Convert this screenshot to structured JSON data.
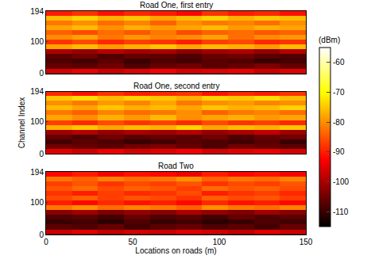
{
  "chart_data": [
    {
      "type": "heatmap",
      "title": "Road One, first entry",
      "tick_labels": "y",
      "x": [
        7.5,
        22.5,
        37.5,
        52.5,
        67.5,
        82.5,
        97.5,
        112.5,
        127.5,
        142.5
      ],
      "y": [
        7.5,
        22.5,
        37.5,
        52.5,
        67.5,
        82.5,
        97.5,
        112.5,
        127.5,
        142.5,
        157.5,
        172.5,
        187.5
      ],
      "z": [
        [
          -96,
          -94,
          -97,
          -95,
          -93,
          -96,
          -95,
          -94,
          -97,
          -95
        ],
        [
          -106,
          -107,
          -105,
          -108,
          -106,
          -105,
          -107,
          -106,
          -104,
          -106
        ],
        [
          -108,
          -109,
          -107,
          -110,
          -108,
          -109,
          -107,
          -108,
          -110,
          -109
        ],
        [
          -107,
          -105,
          -108,
          -106,
          -107,
          -108,
          -106,
          -105,
          -107,
          -108
        ],
        [
          -100,
          -102,
          -99,
          -101,
          -100,
          -103,
          -101,
          -100,
          -102,
          -99
        ],
        [
          -78,
          -76,
          -79,
          -77,
          -75,
          -78,
          -76,
          -77,
          -79,
          -76
        ],
        [
          -88,
          -86,
          -89,
          -87,
          -88,
          -90,
          -87,
          -86,
          -89,
          -88
        ],
        [
          -80,
          -78,
          -82,
          -79,
          -81,
          -80,
          -78,
          -83,
          -80,
          -79
        ],
        [
          -84,
          -86,
          -83,
          -85,
          -82,
          -86,
          -84,
          -83,
          -85,
          -84
        ],
        [
          -78,
          -76,
          -80,
          -77,
          -79,
          -78,
          -76,
          -79,
          -77,
          -78
        ],
        [
          -82,
          -80,
          -83,
          -81,
          -84,
          -80,
          -82,
          -81,
          -83,
          -80
        ],
        [
          -76,
          -74,
          -77,
          -75,
          -78,
          -76,
          -74,
          -77,
          -75,
          -76
        ],
        [
          -90,
          -88,
          -91,
          -89,
          -90,
          -92,
          -88,
          -90,
          -89,
          -91
        ]
      ],
      "xlim": [
        0,
        150
      ],
      "xticks": [
        0,
        50,
        100,
        150
      ],
      "ylim": [
        0,
        194
      ],
      "yticks": [
        0,
        100,
        194
      ],
      "colorbar": {
        "title": "(dBm)",
        "range": [
          -115,
          -55
        ],
        "ticks": [
          -60,
          -70,
          -80,
          -90,
          -100,
          -110
        ]
      }
    },
    {
      "type": "heatmap",
      "title": "Road One, second entry",
      "tick_labels": "y",
      "ylabel": "Channel Index",
      "x": [
        7.5,
        22.5,
        37.5,
        52.5,
        67.5,
        82.5,
        97.5,
        112.5,
        127.5,
        142.5
      ],
      "y": [
        7.5,
        22.5,
        37.5,
        52.5,
        67.5,
        82.5,
        97.5,
        112.5,
        127.5,
        142.5,
        157.5,
        172.5,
        187.5
      ],
      "z": [
        [
          -95,
          -97,
          -94,
          -96,
          -95,
          -93,
          -96,
          -95,
          -94,
          -96
        ],
        [
          -105,
          -106,
          -107,
          -105,
          -104,
          -106,
          -108,
          -105,
          -106,
          -107
        ],
        [
          -109,
          -107,
          -108,
          -110,
          -109,
          -107,
          -108,
          -109,
          -107,
          -110
        ],
        [
          -106,
          -108,
          -105,
          -107,
          -106,
          -107,
          -105,
          -108,
          -106,
          -105
        ],
        [
          -101,
          -99,
          -102,
          -100,
          -101,
          -99,
          -102,
          -100,
          -98,
          -101
        ],
        [
          -77,
          -75,
          -78,
          -76,
          -77,
          -74,
          -78,
          -76,
          -77,
          -75
        ],
        [
          -87,
          -89,
          -86,
          -88,
          -87,
          -89,
          -86,
          -88,
          -87,
          -89
        ],
        [
          -78,
          -80,
          -77,
          -79,
          -76,
          -80,
          -78,
          -77,
          -79,
          -78
        ],
        [
          -82,
          -84,
          -81,
          -83,
          -82,
          -80,
          -84,
          -82,
          -81,
          -83
        ],
        [
          -76,
          -78,
          -75,
          -77,
          -76,
          -78,
          -75,
          -77,
          -76,
          -74
        ],
        [
          -80,
          -82,
          -79,
          -81,
          -78,
          -82,
          -80,
          -79,
          -81,
          -80
        ],
        [
          -75,
          -73,
          -76,
          -74,
          -75,
          -77,
          -74,
          -75,
          -73,
          -76
        ],
        [
          -89,
          -91,
          -88,
          -90,
          -89,
          -88,
          -91,
          -89,
          -90,
          -88
        ]
      ],
      "xlim": [
        0,
        150
      ],
      "xticks": [
        0,
        50,
        100,
        150
      ],
      "ylim": [
        0,
        194
      ],
      "yticks": [
        0,
        100,
        194
      ]
    },
    {
      "type": "heatmap",
      "title": "Road Two",
      "xlabel": "Locations on roads (m)",
      "x": [
        7.5,
        22.5,
        37.5,
        52.5,
        67.5,
        82.5,
        97.5,
        112.5,
        127.5,
        142.5
      ],
      "y": [
        7.5,
        22.5,
        37.5,
        52.5,
        67.5,
        82.5,
        97.5,
        112.5,
        127.5,
        142.5,
        157.5,
        172.5,
        187.5
      ],
      "z": [
        [
          -97,
          -95,
          -98,
          -96,
          -97,
          -95,
          -96,
          -98,
          -95,
          -97
        ],
        [
          -107,
          -108,
          -106,
          -109,
          -107,
          -106,
          -108,
          -107,
          -109,
          -106
        ],
        [
          -110,
          -109,
          -111,
          -108,
          -110,
          -109,
          -111,
          -110,
          -108,
          -109
        ],
        [
          -108,
          -107,
          -109,
          -106,
          -108,
          -107,
          -109,
          -106,
          -108,
          -107
        ],
        [
          -103,
          -101,
          -104,
          -102,
          -103,
          -100,
          -102,
          -104,
          -101,
          -103
        ],
        [
          -82,
          -80,
          -83,
          -81,
          -82,
          -84,
          -80,
          -82,
          -83,
          -81
        ],
        [
          -90,
          -92,
          -89,
          -91,
          -90,
          -92,
          -89,
          -91,
          -90,
          -92
        ],
        [
          -86,
          -84,
          -87,
          -85,
          -86,
          -88,
          -84,
          -86,
          -85,
          -87
        ],
        [
          -88,
          -90,
          -87,
          -89,
          -88,
          -86,
          -90,
          -88,
          -87,
          -89
        ],
        [
          -85,
          -83,
          -86,
          -84,
          -85,
          -87,
          -83,
          -85,
          -84,
          -86
        ],
        [
          -87,
          -85,
          -88,
          -86,
          -87,
          -85,
          -88,
          -86,
          -87,
          -85
        ],
        [
          -82,
          -84,
          -81,
          -83,
          -82,
          -80,
          -84,
          -82,
          -83,
          -81
        ],
        [
          -92,
          -90,
          -93,
          -91,
          -92,
          -94,
          -90,
          -92,
          -91,
          -93
        ]
      ],
      "xlim": [
        0,
        150
      ],
      "xticks": [
        0,
        50,
        100,
        150
      ],
      "ylim": [
        0,
        194
      ],
      "yticks": [
        0,
        100,
        194
      ]
    }
  ]
}
